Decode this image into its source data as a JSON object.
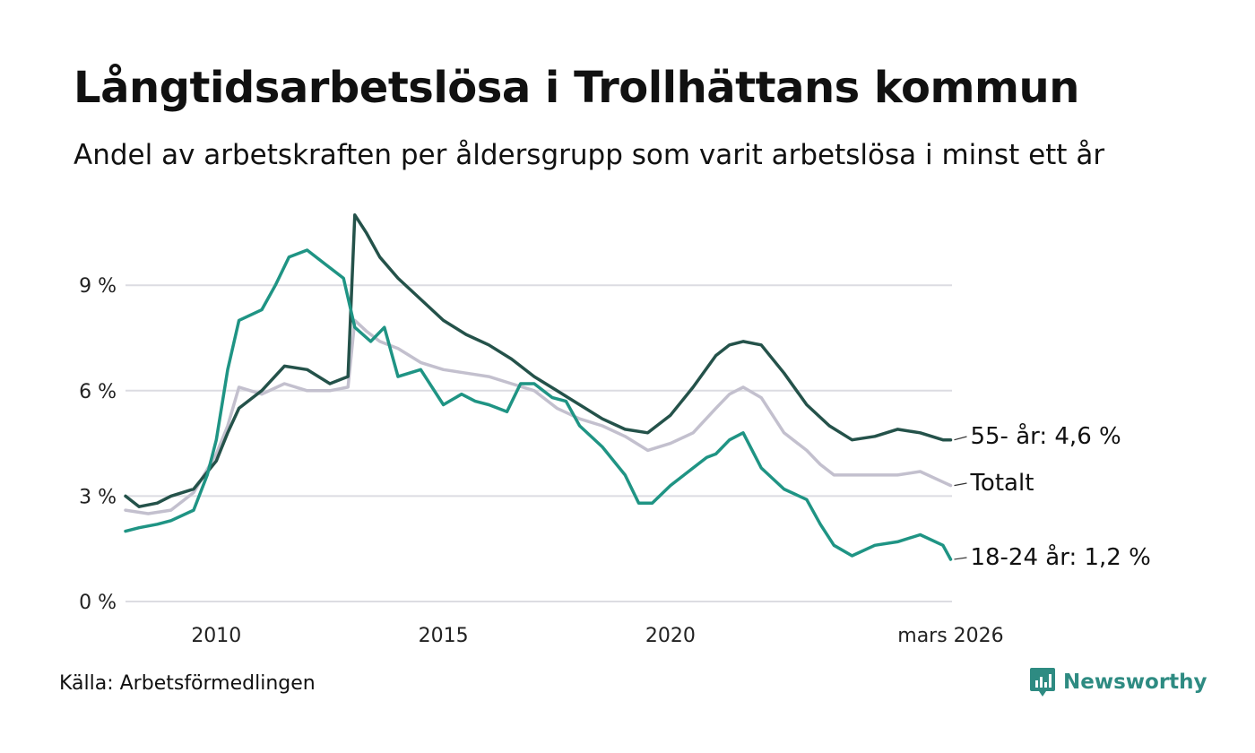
{
  "title": "Långtidsarbetslösa i Trollhättans kommun",
  "subtitle": "Andel av arbetskraften per åldersgrupp som varit arbetslösa i minst ett år",
  "source": "Källa: Arbetsförmedlingen",
  "brand": {
    "name": "Newsworthy",
    "color": "#2e8b82"
  },
  "chart_data": {
    "type": "line",
    "title": "Långtidsarbetslösa i Trollhättans kommun",
    "subtitle": "Andel av arbetskraften per åldersgrupp som varit arbetslösa i minst ett år",
    "xlabel": "",
    "ylabel": "",
    "xlim": [
      2008.0,
      2026.2
    ],
    "ylim": [
      0,
      11
    ],
    "y_ticks": [
      0,
      3,
      6,
      9
    ],
    "y_tick_labels": [
      "0 %",
      "3 %",
      "6 %",
      "9 %"
    ],
    "x_ticks": [
      2010,
      2015,
      2020,
      2026.17
    ],
    "x_tick_labels": [
      "2010",
      "2015",
      "2020",
      "mars 2026"
    ],
    "grid": true,
    "series": [
      {
        "name": "Totalt",
        "label": "Totalt",
        "color": "#c3c0ce",
        "x": [
          2008.0,
          2008.5,
          2009.0,
          2009.5,
          2010.0,
          2010.25,
          2010.5,
          2011.0,
          2011.5,
          2012.0,
          2012.5,
          2012.9,
          2013.05,
          2013.3,
          2013.6,
          2014.0,
          2014.5,
          2015.0,
          2015.5,
          2016.0,
          2016.5,
          2017.0,
          2017.5,
          2018.0,
          2018.5,
          2019.0,
          2019.5,
          2020.0,
          2020.5,
          2021.0,
          2021.3,
          2021.6,
          2022.0,
          2022.5,
          2023.0,
          2023.3,
          2023.6,
          2024.0,
          2024.5,
          2025.0,
          2025.5,
          2026.0,
          2026.17
        ],
        "values": [
          2.6,
          2.5,
          2.6,
          3.1,
          4.2,
          5.0,
          6.1,
          5.9,
          6.2,
          6.0,
          6.0,
          6.1,
          8.0,
          7.7,
          7.4,
          7.2,
          6.8,
          6.6,
          6.5,
          6.4,
          6.2,
          6.0,
          5.5,
          5.2,
          5.0,
          4.7,
          4.3,
          4.5,
          4.8,
          5.5,
          5.9,
          6.1,
          5.8,
          4.8,
          4.3,
          3.9,
          3.6,
          3.6,
          3.6,
          3.6,
          3.7,
          3.4,
          3.3
        ]
      },
      {
        "name": "55- år",
        "label": "55- år: 4,6 %",
        "color": "#24524a",
        "x": [
          2008.0,
          2008.3,
          2008.7,
          2009.0,
          2009.5,
          2010.0,
          2010.25,
          2010.5,
          2011.0,
          2011.5,
          2012.0,
          2012.5,
          2012.9,
          2013.05,
          2013.3,
          2013.6,
          2014.0,
          2014.5,
          2015.0,
          2015.5,
          2016.0,
          2016.5,
          2017.0,
          2017.5,
          2018.0,
          2018.5,
          2019.0,
          2019.5,
          2020.0,
          2020.5,
          2021.0,
          2021.3,
          2021.6,
          2022.0,
          2022.5,
          2023.0,
          2023.5,
          2024.0,
          2024.5,
          2025.0,
          2025.5,
          2026.0,
          2026.17
        ],
        "values": [
          3.0,
          2.7,
          2.8,
          3.0,
          3.2,
          4.0,
          4.8,
          5.5,
          6.0,
          6.7,
          6.6,
          6.2,
          6.4,
          11.0,
          10.5,
          9.8,
          9.2,
          8.6,
          8.0,
          7.6,
          7.3,
          6.9,
          6.4,
          6.0,
          5.6,
          5.2,
          4.9,
          4.8,
          5.3,
          6.1,
          7.0,
          7.3,
          7.4,
          7.3,
          6.5,
          5.6,
          5.0,
          4.6,
          4.7,
          4.9,
          4.8,
          4.6,
          4.6
        ]
      },
      {
        "name": "18-24 år",
        "label": "18-24 år: 1,2 %",
        "color": "#1f9484",
        "x": [
          2008.0,
          2008.3,
          2008.7,
          2009.0,
          2009.5,
          2009.8,
          2010.0,
          2010.25,
          2010.5,
          2011.0,
          2011.3,
          2011.6,
          2012.0,
          2012.4,
          2012.8,
          2013.05,
          2013.4,
          2013.7,
          2014.0,
          2014.5,
          2015.0,
          2015.4,
          2015.7,
          2016.0,
          2016.4,
          2016.7,
          2017.0,
          2017.4,
          2017.7,
          2018.0,
          2018.5,
          2019.0,
          2019.3,
          2019.6,
          2020.0,
          2020.5,
          2020.8,
          2021.0,
          2021.3,
          2021.6,
          2022.0,
          2022.5,
          2023.0,
          2023.3,
          2023.6,
          2024.0,
          2024.5,
          2025.0,
          2025.5,
          2026.0,
          2026.17
        ],
        "values": [
          2.0,
          2.1,
          2.2,
          2.3,
          2.6,
          3.6,
          4.6,
          6.6,
          8.0,
          8.3,
          9.0,
          9.8,
          10.0,
          9.6,
          9.2,
          7.8,
          7.4,
          7.8,
          6.4,
          6.6,
          5.6,
          5.9,
          5.7,
          5.6,
          5.4,
          6.2,
          6.2,
          5.8,
          5.7,
          5.0,
          4.4,
          3.6,
          2.8,
          2.8,
          3.3,
          3.8,
          4.1,
          4.2,
          4.6,
          4.8,
          3.8,
          3.2,
          2.9,
          2.2,
          1.6,
          1.3,
          1.6,
          1.7,
          1.9,
          1.6,
          1.2
        ]
      }
    ]
  }
}
